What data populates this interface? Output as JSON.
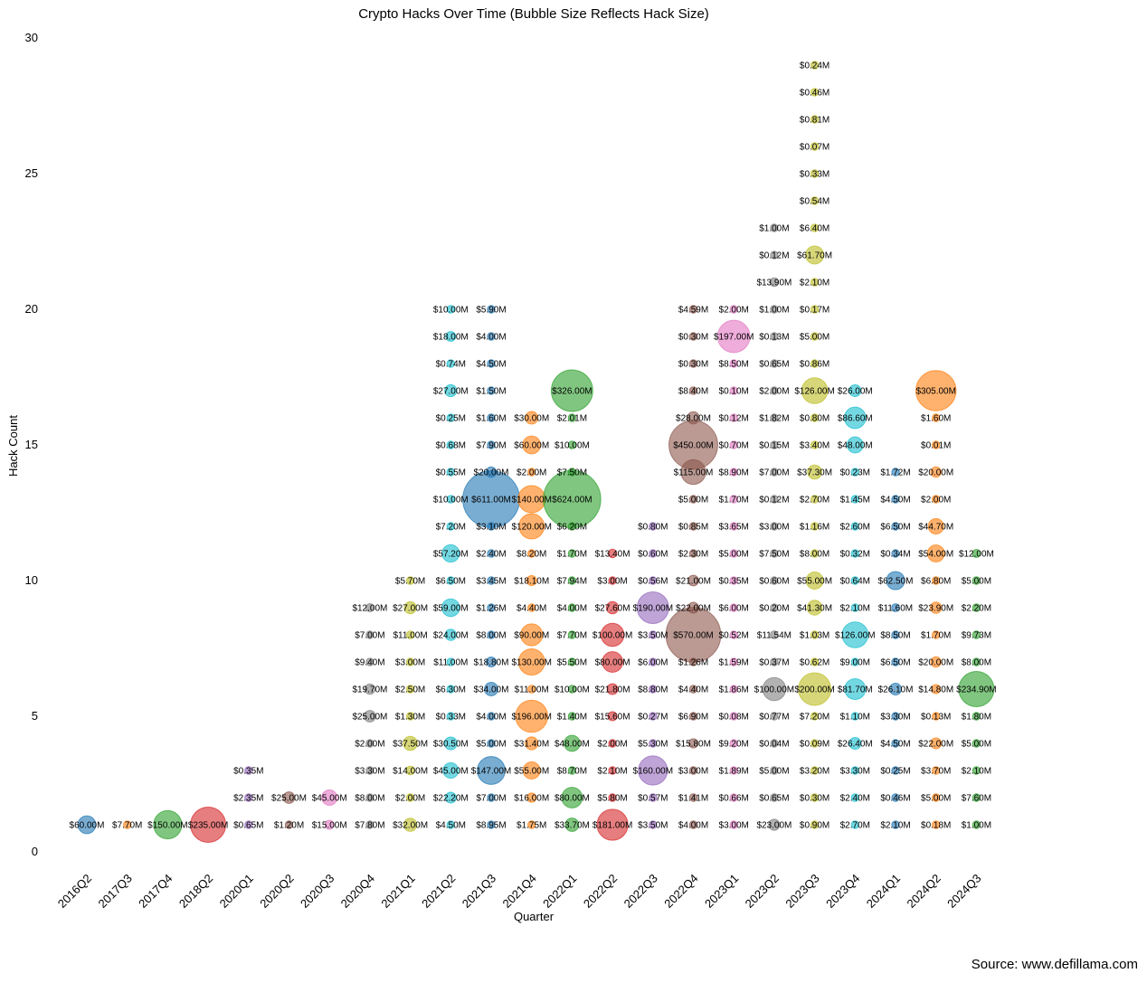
{
  "chart_data": {
    "type": "scatter",
    "title": "Crypto Hacks Over Time (Bubble Size Reflects Hack Size)",
    "xlabel": "Quarter",
    "ylabel": "Hack Count",
    "ylim": [
      0,
      30
    ],
    "yticks": [
      0,
      5,
      10,
      15,
      20,
      25,
      30
    ],
    "grid": false,
    "legend": "none",
    "categories": [
      "2016Q2",
      "2017Q3",
      "2017Q4",
      "2018Q2",
      "2020Q1",
      "2020Q2",
      "2020Q3",
      "2020Q4",
      "2021Q1",
      "2021Q2",
      "2021Q3",
      "2021Q4",
      "2022Q1",
      "2022Q2",
      "2022Q3",
      "2022Q4",
      "2023Q1",
      "2023Q2",
      "2023Q3",
      "2023Q4",
      "2024Q1",
      "2024Q2",
      "2024Q3"
    ],
    "colors": [
      "#1f77b4",
      "#ff7f0e",
      "#2ca02c",
      "#d62728",
      "#9467bd",
      "#8c564b",
      "#e377c2",
      "#7f7f7f",
      "#bcbd22",
      "#17becf",
      "#1f77b4",
      "#ff7f0e",
      "#2ca02c",
      "#d62728",
      "#9467bd",
      "#8c564b",
      "#e377c2",
      "#7f7f7f",
      "#bcbd22",
      "#17becf",
      "#1f77b4",
      "#ff7f0e",
      "#2ca02c"
    ],
    "series": [
      {
        "quarter": "2016Q2",
        "amounts": [
          60.0
        ]
      },
      {
        "quarter": "2017Q3",
        "amounts": [
          7.7
        ]
      },
      {
        "quarter": "2017Q4",
        "amounts": [
          150.0
        ]
      },
      {
        "quarter": "2018Q2",
        "amounts": [
          235.0
        ]
      },
      {
        "quarter": "2020Q1",
        "amounts": [
          0.65,
          2.35,
          0.35
        ]
      },
      {
        "quarter": "2020Q2",
        "amounts": [
          1.2,
          25.0
        ]
      },
      {
        "quarter": "2020Q3",
        "amounts": [
          15.0,
          45.0
        ]
      },
      {
        "quarter": "2020Q4",
        "amounts": [
          7.8,
          8.0,
          3.3,
          2.0,
          25.0,
          19.7,
          9.4,
          7.0,
          12.0
        ]
      },
      {
        "quarter": "2021Q1",
        "amounts": [
          32.0,
          2.0,
          14.0,
          37.5,
          1.3,
          2.5,
          3.0,
          11.0,
          27.0,
          5.7
        ]
      },
      {
        "quarter": "2021Q2",
        "amounts": [
          4.5,
          22.2,
          45.0,
          30.5,
          0.33,
          6.3,
          11.0,
          24.0,
          59.0,
          6.5,
          57.2,
          7.2,
          10.0,
          0.55,
          0.68,
          0.25,
          27.0,
          0.74,
          18.0,
          10.0
        ]
      },
      {
        "quarter": "2021Q3",
        "amounts": [
          8.95,
          7.0,
          147.0,
          5.0,
          4.0,
          34.0,
          18.8,
          8.0,
          1.26,
          3.45,
          2.4,
          3.1,
          611.0,
          20.0,
          7.9,
          1.6,
          1.5,
          4.5,
          4.0,
          5.9
        ]
      },
      {
        "quarter": "2021Q4",
        "amounts": [
          1.75,
          16.0,
          55.0,
          31.4,
          196.0,
          11.0,
          130.0,
          90.0,
          4.4,
          18.1,
          8.2,
          120.0,
          140.0,
          2.0,
          60.0,
          30.0
        ]
      },
      {
        "quarter": "2022Q1",
        "amounts": [
          33.7,
          80.0,
          8.7,
          48.0,
          1.4,
          10.0,
          5.5,
          7.7,
          4.0,
          7.94,
          1.7,
          6.2,
          624.0,
          7.5,
          10.0,
          2.01,
          326.0
        ]
      },
      {
        "quarter": "2022Q2",
        "amounts": [
          181.0,
          5.8,
          2.1,
          2.0,
          15.6,
          21.8,
          80.0,
          100.0,
          27.6,
          3.0,
          13.4
        ]
      },
      {
        "quarter": "2022Q3",
        "amounts": [
          3.5,
          0.57,
          160.0,
          5.3,
          0.27,
          8.8,
          6.0,
          3.5,
          190.0,
          0.56,
          0.6,
          0.8
        ]
      },
      {
        "quarter": "2022Q4",
        "amounts": [
          4.0,
          1.41,
          3.0,
          15.8,
          6.9,
          4.4,
          1.26,
          570.0,
          22.0,
          21.0,
          2.3,
          0.85,
          5.0,
          115.0,
          450.0,
          28.0,
          8.4,
          0.3,
          0.3,
          4.59
        ]
      },
      {
        "quarter": "2023Q1",
        "amounts": [
          3.0,
          0.66,
          1.89,
          9.2,
          0.08,
          1.86,
          1.59,
          0.52,
          6.0,
          0.35,
          5.0,
          3.65,
          1.7,
          8.9,
          0.7,
          0.12,
          0.1,
          8.5,
          197.0,
          2.0
        ]
      },
      {
        "quarter": "2023Q2",
        "amounts": [
          23.0,
          0.65,
          5.0,
          0.04,
          0.77,
          100.0,
          0.37,
          11.54,
          0.2,
          0.6,
          7.5,
          3.0,
          0.12,
          7.0,
          0.15,
          1.82,
          2.0,
          0.65,
          0.13,
          1.0,
          13.9,
          0.12,
          1.0
        ]
      },
      {
        "quarter": "2023Q3",
        "amounts": [
          0.9,
          0.3,
          3.2,
          0.09,
          7.2,
          200.0,
          0.62,
          1.03,
          41.3,
          55.0,
          8.0,
          1.16,
          2.7,
          37.3,
          3.4,
          0.8,
          126.0,
          0.86,
          5.0,
          0.17,
          2.1,
          61.7,
          6.4,
          0.54,
          0.33,
          0.07,
          0.81,
          0.46,
          0.24
        ]
      },
      {
        "quarter": "2023Q4",
        "amounts": [
          2.7,
          2.4,
          3.3,
          26.4,
          1.1,
          81.7,
          9.0,
          126.0,
          2.1,
          0.64,
          0.32,
          2.6,
          1.45,
          0.23,
          48.0,
          86.6,
          26.0
        ]
      },
      {
        "quarter": "2024Q1",
        "amounts": [
          2.1,
          0.46,
          0.25,
          4.5,
          3.3,
          26.1,
          6.5,
          8.5,
          11.6,
          62.5,
          0.34,
          6.5,
          4.5,
          1.72
        ]
      },
      {
        "quarter": "2024Q2",
        "amounts": [
          0.18,
          5.0,
          3.7,
          22.0,
          0.13,
          14.8,
          20.0,
          1.7,
          23.9,
          6.8,
          54.0,
          44.7,
          2.0,
          20.0,
          0.01,
          1.6,
          305.0
        ]
      },
      {
        "quarter": "2024Q3",
        "amounts": [
          1.0,
          7.6,
          2.1,
          5.0,
          1.8,
          234.9,
          8.0,
          9.73,
          2.2,
          5.0,
          12.0
        ]
      }
    ],
    "labels": [
      [
        "$60.00M"
      ],
      [
        "$7.70M"
      ],
      [
        "$150.00M"
      ],
      [
        "$235.00M"
      ],
      [
        "$0.65M",
        "$2.35M",
        "$0.35M"
      ],
      [
        "$1.20M",
        "$25.00M"
      ],
      [
        "$15.00M",
        "$45.00M"
      ],
      [
        "$7.80M",
        "$8.00M",
        "$3.30M",
        "$2.00M",
        "$25.00M",
        "$19.70M",
        "$9.40M",
        "$7.00M",
        "$12.00M"
      ],
      [
        "$32.00M",
        "$2.00M",
        "$14.00M",
        "$37.50M",
        "$1.30M",
        "$2.50M",
        "$3.00M",
        "$11.00M",
        "$27.00M",
        "$5.70M"
      ],
      [
        "$4.50M",
        "$22.20M",
        "$45.00M",
        "$30.50M",
        "$0.33M",
        "$6.30M",
        "$11.00M",
        "$24.00M",
        "$59.00M",
        "$6.50M",
        "$57.20M",
        "$7.20M",
        "$10.00M",
        "$0.55M",
        "$0.68M",
        "$0.25M",
        "$27.00M",
        "$0.74M",
        "$18.00M",
        "$10.00M"
      ],
      [
        "$8.95M",
        "$7.00M",
        "$147.00M",
        "$5.00M",
        "$4.00M",
        "$34.00M",
        "$18.80M",
        "$8.00M",
        "$1.26M",
        "$3.45M",
        "$2.40M",
        "$3.10M",
        "$611.00M",
        "$20.00M",
        "$7.90M",
        "$1.60M",
        "$1.50M",
        "$4.50M",
        "$4.00M",
        "$5.90M"
      ],
      [
        "$1.75M",
        "$16.00M",
        "$55.00M",
        "$31.40M",
        "$196.00M",
        "$11.00M",
        "$130.00M",
        "$90.00M",
        "$4.40M",
        "$18.10M",
        "$8.20M",
        "$120.00M",
        "$140.00M",
        "$2.00M",
        "$60.00M",
        "$30.00M"
      ],
      [
        "$33.70M",
        "$80.00M",
        "$8.70M",
        "$48.00M",
        "$1.40M",
        "$10.00M",
        "$5.50M",
        "$7.70M",
        "$4.00M",
        "$7.94M",
        "$1.70M",
        "$6.20M",
        "$624.00M",
        "$7.50M",
        "$10.00M",
        "$2.01M",
        "$326.00M"
      ],
      [
        "$181.00M",
        "$5.80M",
        "$2.10M",
        "$2.00M",
        "$15.60M",
        "$21.80M",
        "$80.00M",
        "$100.00M",
        "$27.60M",
        "$3.00M",
        "$13.40M"
      ],
      [
        "$3.50M",
        "$0.57M",
        "$160.00M",
        "$5.30M",
        "$0.27M",
        "$8.80M",
        "$6.00M",
        "$3.50M",
        "$190.00M",
        "$0.56M",
        "$0.60M",
        "$0.80M"
      ],
      [
        "$4.00M",
        "$1.41M",
        "$3.00M",
        "$15.80M",
        "$6.90M",
        "$4.40M",
        "$1.26M",
        "$570.00M",
        "$22.00M",
        "$21.00M",
        "$2.30M",
        "$0.85M",
        "$5.00M",
        "$115.00M",
        "$450.00M",
        "$28.00M",
        "$8.40M",
        "$0.30M",
        "$0.30M",
        "$4.59M"
      ],
      [
        "$3.00M",
        "$0.66M",
        "$1.89M",
        "$9.20M",
        "$0.08M",
        "$1.86M",
        "$1.59M",
        "$0.52M",
        "$6.00M",
        "$0.35M",
        "$5.00M",
        "$3.65M",
        "$1.70M",
        "$8.90M",
        "$0.70M",
        "$0.12M",
        "$0.10M",
        "$8.50M",
        "$197.00M",
        "$2.00M"
      ],
      [
        "$23.00M",
        "$0.65M",
        "$5.00M",
        "$0.04M",
        "$0.77M",
        "$100.00M",
        "$0.37M",
        "$11.54M",
        "$0.20M",
        "$0.60M",
        "$7.50M",
        "$3.00M",
        "$0.12M",
        "$7.00M",
        "$0.15M",
        "$1.82M",
        "$2.00M",
        "$0.65M",
        "$0.13M",
        "$1.00M",
        "$13.90M",
        "$0.12M",
        "$1.00M"
      ],
      [
        "$0.90M",
        "$0.30M",
        "$3.20M",
        "$0.09M",
        "$7.20M",
        "$200.00M",
        "$0.62M",
        "$1.03M",
        "$41.30M",
        "$55.00M",
        "$8.00M",
        "$1.16M",
        "$2.70M",
        "$37.30M",
        "$3.40M",
        "$0.80M",
        "$126.00M",
        "$0.86M",
        "$5.00M",
        "$0.17M",
        "$2.10M",
        "$61.70M",
        "$6.40M",
        "$0.54M",
        "$0.33M",
        "$0.07M",
        "$0.81M",
        "$0.46M",
        "$0.24M"
      ],
      [
        "$2.70M",
        "$2.40M",
        "$3.30M",
        "$26.40M",
        "$1.10M",
        "$81.70M",
        "$9.00M",
        "$126.00M",
        "$2.10M",
        "$0.64M",
        "$0.32M",
        "$2.60M",
        "$1.45M",
        "$0.23M",
        "$48.00M",
        "$86.60M",
        "$26.00M"
      ],
      [
        "$2.10M",
        "$0.46M",
        "$0.25M",
        "$4.50M",
        "$3.30M",
        "$26.10M",
        "$6.50M",
        "$8.50M",
        "$11.60M",
        "$62.50M",
        "$0.34M",
        "$6.50M",
        "$4.50M",
        "$1.72M"
      ],
      [
        "$0.18M",
        "$5.00M",
        "$3.70M",
        "$22.00M",
        "$0.13M",
        "$14.80M",
        "$20.00M",
        "$1.70M",
        "$23.90M",
        "$6.80M",
        "$54.00M",
        "$44.70M",
        "$2.00M",
        "$20.00M",
        "$0.01M",
        "$1.60M",
        "$305.00M"
      ],
      [
        "$1.00M",
        "$7.60M",
        "$2.10M",
        "$5.00M",
        "$1.80M",
        "$234.90M",
        "$8.00M",
        "$9.73M",
        "$2.20M",
        "$5.00M",
        "$12.00M"
      ]
    ]
  },
  "source": "Source: www.defillama.com"
}
